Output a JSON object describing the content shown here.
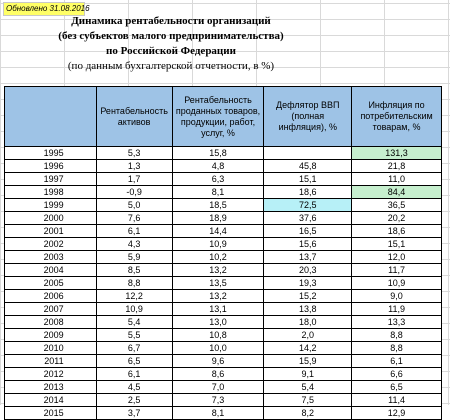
{
  "updated_label": "Обновлено 31.08.2016",
  "title_lines": [
    "Динамика рентабельности организаций",
    "(без субъектов малого предпринимательства)",
    "по Российской Федерации"
  ],
  "subtitle": "(по данным бухгалтерской отчетности, в %)",
  "columns": [
    "",
    "Рентабельность активов",
    "Рентабельность проданных товаров, продукции, работ, услуг, %",
    "Дефлятор ВВП (полная инфляция), %",
    "Инфляция по потребительским товарам, %"
  ],
  "rows": [
    [
      "1995",
      "5,3",
      "15,8",
      "",
      "131,3"
    ],
    [
      "1996",
      "1,3",
      "4,8",
      "45,8",
      "21,8"
    ],
    [
      "1997",
      "1,7",
      "6,3",
      "15,1",
      "11,0"
    ],
    [
      "1998",
      "-0,9",
      "8,1",
      "18,6",
      "84,4"
    ],
    [
      "1999",
      "5,0",
      "18,5",
      "72,5",
      "36,5"
    ],
    [
      "2000",
      "7,6",
      "18,9",
      "37,6",
      "20,2"
    ],
    [
      "2001",
      "6,1",
      "14,4",
      "16,5",
      "18,6"
    ],
    [
      "2002",
      "4,3",
      "10,9",
      "15,6",
      "15,1"
    ],
    [
      "2003",
      "5,9",
      "10,2",
      "13,7",
      "12,0"
    ],
    [
      "2004",
      "8,5",
      "13,2",
      "20,3",
      "11,7"
    ],
    [
      "2005",
      "8,8",
      "13,5",
      "19,3",
      "10,9"
    ],
    [
      "2006",
      "12,2",
      "13,2",
      "15,2",
      "9,0"
    ],
    [
      "2007",
      "10,9",
      "13,1",
      "13,8",
      "11,9"
    ],
    [
      "2008",
      "5,4",
      "13,0",
      "18,0",
      "13,3"
    ],
    [
      "2009",
      "5,5",
      "10,8",
      "2,0",
      "8,8"
    ],
    [
      "2010",
      "6,7",
      "10,0",
      "14,2",
      "8,8"
    ],
    [
      "2011",
      "6,5",
      "9,6",
      "15,9",
      "6,1"
    ],
    [
      "2012",
      "6,1",
      "8,6",
      "9,1",
      "6,6"
    ],
    [
      "2013",
      "4,5",
      "7,0",
      "5,4",
      "6,5"
    ],
    [
      "2014",
      "2,5",
      "7,3",
      "7,5",
      "11,4"
    ],
    [
      "2015",
      "3,7",
      "8,1",
      "8,2",
      "12,9"
    ]
  ],
  "highlights": {
    "0-4": "#c6efce",
    "3-4": "#c6efce",
    "4-3": "#b7f0f7"
  }
}
